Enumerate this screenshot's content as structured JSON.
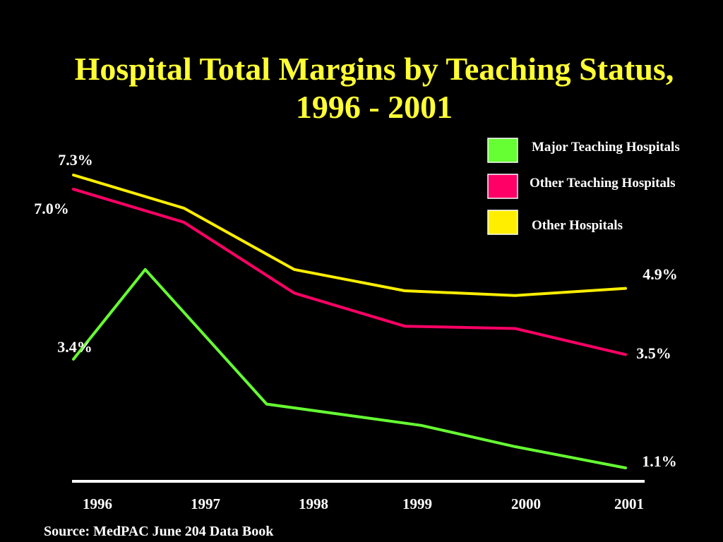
{
  "title_line1": "Hospital Total Margins by Teaching Status,",
  "title_line2": "1996 - 2001",
  "source": "Source: MedPAC June 204 Data Book",
  "chart_data": {
    "type": "line",
    "x": [
      "1996",
      "1997",
      "1998",
      "1999",
      "2000",
      "2001"
    ],
    "series": [
      {
        "name": "Major Teaching Hospitals",
        "color": "#66ff33",
        "points": [
          {
            "x": 1996.0,
            "y": 3.4
          },
          {
            "x": 1996.65,
            "y": 5.3
          },
          {
            "x": 1997.75,
            "y": 2.45
          },
          {
            "x": 1999.15,
            "y": 2.0
          },
          {
            "x": 2000.0,
            "y": 1.55
          },
          {
            "x": 2001.0,
            "y": 1.1
          }
        ]
      },
      {
        "name": "Other Teaching Hospitals",
        "color": "#ff0066",
        "points": [
          {
            "x": 1996.0,
            "y": 7.0
          },
          {
            "x": 1997.0,
            "y": 6.3
          },
          {
            "x": 1998.0,
            "y": 4.8
          },
          {
            "x": 1999.0,
            "y": 4.1
          },
          {
            "x": 2000.0,
            "y": 4.05
          },
          {
            "x": 2001.0,
            "y": 3.5
          }
        ]
      },
      {
        "name": "Other Hospitals",
        "color": "#ffee00",
        "points": [
          {
            "x": 1996.0,
            "y": 7.3
          },
          {
            "x": 1997.0,
            "y": 6.6
          },
          {
            "x": 1998.0,
            "y": 5.3
          },
          {
            "x": 1999.0,
            "y": 4.85
          },
          {
            "x": 2000.0,
            "y": 4.75
          },
          {
            "x": 2001.0,
            "y": 4.9
          }
        ]
      }
    ],
    "data_labels": [
      {
        "text": "7.3%",
        "series": "Other Hospitals",
        "x": 1996.0
      },
      {
        "text": "7.0%",
        "series": "Other Teaching Hospitals",
        "x": 1996.0
      },
      {
        "text": "3.4%",
        "series": "Major Teaching Hospitals",
        "x": 1996.0
      },
      {
        "text": "4.9%",
        "series": "Other Hospitals",
        "x": 2001.0
      },
      {
        "text": "3.5%",
        "series": "Other Teaching Hospitals",
        "x": 2001.0
      },
      {
        "text": "1.1%",
        "series": "Major Teaching Hospitals",
        "x": 2001.0
      }
    ],
    "legend_position": "top-right",
    "xlabel": "",
    "ylabel": "",
    "grid": false
  }
}
